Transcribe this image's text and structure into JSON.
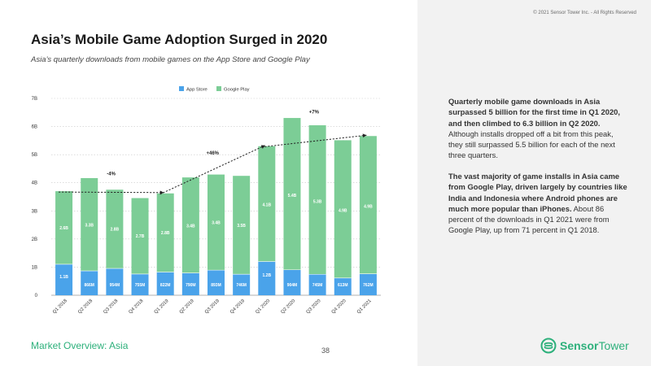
{
  "page": {
    "copyright": "© 2021 Sensor Tower Inc. - All Rights Reserved",
    "title": "Asia’s Mobile Game Adoption Surged in 2020",
    "subtitle": "Asia’s quarterly downloads from mobile games on the App Store and Google Play",
    "footer_left": "Market Overview: Asia",
    "page_number": "38",
    "brand": {
      "name_bold": "Sensor",
      "name_regular": "Tower"
    }
  },
  "text": {
    "p1_bold": "Quarterly mobile game downloads in Asia surpassed 5 billion for the first time in Q1 2020, and then climbed to 6.3 billion in Q2 2020.",
    "p1_rest": " Although installs dropped off a bit from this peak, they still surpassed 5.5 billion for each of the next three quarters.",
    "p2_bold": "The vast majority of game installs in Asia came from Google Play, driven largely by countries like India and Indonesia where Android phones are much more popular than iPhones.",
    "p2_rest": " About 86 percent of the downloads in Q1 2021 were from Google Play, up from 71 percent in Q1 2018."
  },
  "colors": {
    "app_store": "#4aa3ea",
    "google_play": "#7ccd96",
    "accent": "#2db07b"
  },
  "chart_data": {
    "type": "bar",
    "stacked": true,
    "categories": [
      "Q1 2018",
      "Q2 2018",
      "Q3 2018",
      "Q4 2018",
      "Q1 2019",
      "Q2 2019",
      "Q3 2019",
      "Q4 2019",
      "Q1 2020",
      "Q2 2020",
      "Q3 2020",
      "Q4 2020",
      "Q1 2021"
    ],
    "series": [
      {
        "name": "App Store",
        "values": [
          1.1,
          0.866,
          0.954,
          0.755,
          0.822,
          0.79,
          0.893,
          0.746,
          1.2,
          0.904,
          0.745,
          0.613,
          0.762
        ],
        "labels": [
          "1.1B",
          "866M",
          "954M",
          "755M",
          "822M",
          "790M",
          "893M",
          "746M",
          "1.2B",
          "904M",
          "745M",
          "613M",
          "762M"
        ]
      },
      {
        "name": "Google Play",
        "values": [
          2.6,
          3.3,
          2.8,
          2.7,
          2.8,
          3.4,
          3.4,
          3.5,
          4.1,
          5.4,
          5.3,
          4.9,
          4.9
        ],
        "labels": [
          "2.6B",
          "3.3B",
          "2.8B",
          "2.7B",
          "2.8B",
          "3.4B",
          "3.4B",
          "3.5B",
          "4.1B",
          "5.4B",
          "5.3B",
          "4.9B",
          "4.9B"
        ]
      }
    ],
    "ylim": [
      0,
      7
    ],
    "yticks": [
      "0",
      "1B",
      "2B",
      "3B",
      "4B",
      "5B",
      "6B",
      "7B"
    ],
    "grid": true,
    "legend_position": "top-center",
    "annotations": [
      {
        "label": "-4%",
        "from": "Q1 2018",
        "to": "Q1 2019"
      },
      {
        "label": "+46%",
        "from": "Q1 2019",
        "to": "Q1 2020"
      },
      {
        "label": "+7%",
        "from": "Q1 2020",
        "to": "Q1 2021"
      }
    ]
  }
}
